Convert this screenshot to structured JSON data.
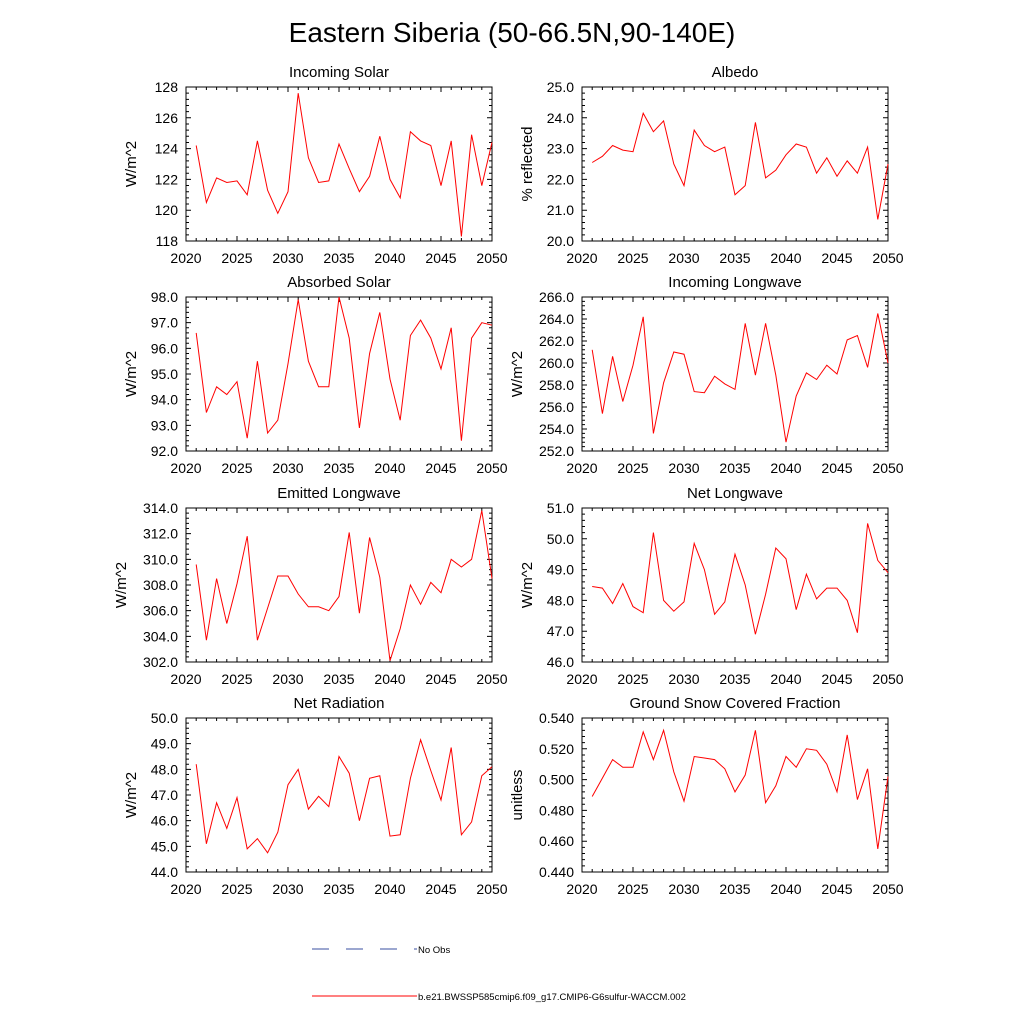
{
  "title": "Eastern Siberia (50-66.5N,90-140E)",
  "legend": {
    "entries": [
      {
        "label": "No Obs",
        "color": "#3a4fa0",
        "style": "dashed"
      },
      {
        "label": "b.e21.BWSSP585cmip6.f09_g17.CMIP6-G6sulfur-WACCM.002",
        "color": "#ff0000",
        "style": "solid"
      }
    ]
  },
  "chart_data": [
    {
      "type": "line",
      "title": "Incoming Solar",
      "ylabel": "W/m^2",
      "xlim": [
        2020,
        2050
      ],
      "ylim": [
        118,
        128
      ],
      "xticks": [
        "2020",
        "2025",
        "2030",
        "2035",
        "2040",
        "2045",
        "2050"
      ],
      "yticks": [
        "118",
        "120",
        "122",
        "124",
        "126",
        "128"
      ],
      "series": [
        {
          "color": "#ff0000",
          "x": [
            2021,
            2022,
            2023,
            2024,
            2025,
            2026,
            2027,
            2028,
            2029,
            2030,
            2031,
            2032,
            2033,
            2034,
            2035,
            2036,
            2037,
            2038,
            2039,
            2040,
            2041,
            2042,
            2043,
            2044,
            2045,
            2046,
            2047,
            2048,
            2049,
            2050
          ],
          "y": [
            124.2,
            120.5,
            122.1,
            121.8,
            121.9,
            121.0,
            124.5,
            121.3,
            119.8,
            121.2,
            127.6,
            123.4,
            121.8,
            121.9,
            124.3,
            122.7,
            121.2,
            122.2,
            124.8,
            122.0,
            120.8,
            125.1,
            124.5,
            124.2,
            121.6,
            124.5,
            118.3,
            124.9,
            121.6,
            124.4
          ]
        }
      ]
    },
    {
      "type": "line",
      "title": "Albedo",
      "ylabel": "% reflected",
      "xlim": [
        2020,
        2050
      ],
      "ylim": [
        20,
        25
      ],
      "xticks": [
        "2020",
        "2025",
        "2030",
        "2035",
        "2040",
        "2045",
        "2050"
      ],
      "yticks": [
        "20.0",
        "21.0",
        "22.0",
        "23.0",
        "24.0",
        "25.0"
      ],
      "series": [
        {
          "color": "#ff0000",
          "x": [
            2021,
            2022,
            2023,
            2024,
            2025,
            2026,
            2027,
            2028,
            2029,
            2030,
            2031,
            2032,
            2033,
            2034,
            2035,
            2036,
            2037,
            2038,
            2039,
            2040,
            2041,
            2042,
            2043,
            2044,
            2045,
            2046,
            2047,
            2048,
            2049,
            2050
          ],
          "y": [
            22.55,
            22.75,
            23.1,
            22.95,
            22.9,
            24.15,
            23.55,
            23.9,
            22.5,
            21.8,
            23.6,
            23.1,
            22.9,
            23.05,
            21.5,
            21.8,
            23.85,
            22.05,
            22.3,
            22.8,
            23.15,
            23.05,
            22.2,
            22.7,
            22.1,
            22.6,
            22.2,
            23.05,
            20.7,
            22.5
          ]
        }
      ]
    },
    {
      "type": "line",
      "title": "Absorbed Solar",
      "ylabel": "W/m^2",
      "xlim": [
        2020,
        2050
      ],
      "ylim": [
        92,
        98
      ],
      "xticks": [
        "2020",
        "2025",
        "2030",
        "2035",
        "2040",
        "2045",
        "2050"
      ],
      "yticks": [
        "92.0",
        "93.0",
        "94.0",
        "95.0",
        "96.0",
        "97.0",
        "98.0"
      ],
      "series": [
        {
          "color": "#ff0000",
          "x": [
            2021,
            2022,
            2023,
            2024,
            2025,
            2026,
            2027,
            2028,
            2029,
            2030,
            2031,
            2032,
            2033,
            2034,
            2035,
            2036,
            2037,
            2038,
            2039,
            2040,
            2041,
            2042,
            2043,
            2044,
            2045,
            2046,
            2047,
            2048,
            2049,
            2050
          ],
          "y": [
            96.6,
            93.5,
            94.5,
            94.2,
            94.7,
            92.5,
            95.5,
            92.7,
            93.2,
            95.4,
            97.9,
            95.5,
            94.5,
            94.5,
            98.0,
            96.4,
            92.9,
            95.8,
            97.4,
            94.8,
            93.2,
            96.5,
            97.1,
            96.4,
            95.2,
            96.8,
            92.4,
            96.4,
            97.0,
            96.9
          ]
        }
      ]
    },
    {
      "type": "line",
      "title": "Incoming Longwave",
      "ylabel": "W/m^2",
      "xlim": [
        2020,
        2050
      ],
      "ylim": [
        252,
        266
      ],
      "xticks": [
        "2020",
        "2025",
        "2030",
        "2035",
        "2040",
        "2045",
        "2050"
      ],
      "yticks": [
        "252.0",
        "254.0",
        "256.0",
        "258.0",
        "260.0",
        "262.0",
        "264.0",
        "266.0"
      ],
      "series": [
        {
          "color": "#ff0000",
          "x": [
            2021,
            2022,
            2023,
            2024,
            2025,
            2026,
            2027,
            2028,
            2029,
            2030,
            2031,
            2032,
            2033,
            2034,
            2035,
            2036,
            2037,
            2038,
            2039,
            2040,
            2041,
            2042,
            2043,
            2044,
            2045,
            2046,
            2047,
            2048,
            2049,
            2050
          ],
          "y": [
            261.2,
            255.4,
            260.6,
            256.5,
            259.8,
            264.2,
            253.6,
            258.2,
            261.0,
            260.8,
            257.4,
            257.3,
            258.8,
            258.1,
            257.6,
            263.6,
            258.9,
            263.6,
            258.9,
            252.8,
            257.0,
            259.1,
            258.5,
            259.8,
            259.0,
            262.1,
            262.5,
            259.6,
            264.5,
            260.0
          ]
        }
      ]
    },
    {
      "type": "line",
      "title": "Emitted Longwave",
      "ylabel": "W/m^2",
      "xlim": [
        2020,
        2050
      ],
      "ylim": [
        302,
        314
      ],
      "xticks": [
        "2020",
        "2025",
        "2030",
        "2035",
        "2040",
        "2045",
        "2050"
      ],
      "yticks": [
        "302.0",
        "304.0",
        "306.0",
        "308.0",
        "310.0",
        "312.0",
        "314.0"
      ],
      "series": [
        {
          "color": "#ff0000",
          "x": [
            2021,
            2022,
            2023,
            2024,
            2025,
            2026,
            2027,
            2028,
            2029,
            2030,
            2031,
            2032,
            2033,
            2034,
            2035,
            2036,
            2037,
            2038,
            2039,
            2040,
            2041,
            2042,
            2043,
            2044,
            2045,
            2046,
            2047,
            2048,
            2049,
            2050
          ],
          "y": [
            309.6,
            303.7,
            308.5,
            305.0,
            308.1,
            311.8,
            303.7,
            306.2,
            308.7,
            308.7,
            307.3,
            306.3,
            306.3,
            306.0,
            307.1,
            312.1,
            305.8,
            311.7,
            308.6,
            302.1,
            304.6,
            308.0,
            306.5,
            308.2,
            307.4,
            310.0,
            309.4,
            310.0,
            313.8,
            308.5
          ]
        }
      ]
    },
    {
      "type": "line",
      "title": "Net Longwave",
      "ylabel": "W/m^2",
      "xlim": [
        2020,
        2050
      ],
      "ylim": [
        46,
        51
      ],
      "xticks": [
        "2020",
        "2025",
        "2030",
        "2035",
        "2040",
        "2045",
        "2050"
      ],
      "yticks": [
        "46.0",
        "47.0",
        "48.0",
        "49.0",
        "50.0",
        "51.0"
      ],
      "series": [
        {
          "color": "#ff0000",
          "x": [
            2021,
            2022,
            2023,
            2024,
            2025,
            2026,
            2027,
            2028,
            2029,
            2030,
            2031,
            2032,
            2033,
            2034,
            2035,
            2036,
            2037,
            2038,
            2039,
            2040,
            2041,
            2042,
            2043,
            2044,
            2045,
            2046,
            2047,
            2048,
            2049,
            2050
          ],
          "y": [
            48.45,
            48.4,
            47.9,
            48.55,
            47.8,
            47.6,
            50.2,
            48.0,
            47.65,
            47.95,
            49.85,
            49.0,
            47.55,
            47.95,
            49.5,
            48.5,
            46.9,
            48.2,
            49.7,
            49.35,
            47.7,
            48.85,
            48.05,
            48.4,
            48.4,
            48.0,
            46.95,
            50.5,
            49.3,
            48.9
          ]
        }
      ]
    },
    {
      "type": "line",
      "title": "Net Radiation",
      "ylabel": "W/m^2",
      "xlim": [
        2020,
        2050
      ],
      "ylim": [
        44,
        50
      ],
      "xticks": [
        "2020",
        "2025",
        "2030",
        "2035",
        "2040",
        "2045",
        "2050"
      ],
      "yticks": [
        "44.0",
        "45.0",
        "46.0",
        "47.0",
        "48.0",
        "49.0",
        "50.0"
      ],
      "series": [
        {
          "color": "#ff0000",
          "x": [
            2021,
            2022,
            2023,
            2024,
            2025,
            2026,
            2027,
            2028,
            2029,
            2030,
            2031,
            2032,
            2033,
            2034,
            2035,
            2036,
            2037,
            2038,
            2039,
            2040,
            2041,
            2042,
            2043,
            2044,
            2045,
            2046,
            2047,
            2048,
            2049,
            2050
          ],
          "y": [
            48.2,
            45.1,
            46.7,
            45.7,
            46.9,
            44.9,
            45.3,
            44.75,
            45.55,
            47.4,
            48.0,
            46.45,
            46.95,
            46.55,
            48.5,
            47.85,
            46.0,
            47.65,
            47.75,
            45.4,
            45.45,
            47.65,
            49.15,
            47.95,
            46.8,
            48.85,
            45.45,
            45.95,
            47.75,
            48.1
          ]
        }
      ]
    },
    {
      "type": "line",
      "title": "Ground Snow Covered Fraction",
      "ylabel": "unitless",
      "xlim": [
        2020,
        2050
      ],
      "ylim": [
        0.44,
        0.54
      ],
      "xticks": [
        "2020",
        "2025",
        "2030",
        "2035",
        "2040",
        "2045",
        "2050"
      ],
      "yticks": [
        "0.440",
        "0.460",
        "0.480",
        "0.500",
        "0.520",
        "0.540"
      ],
      "series": [
        {
          "color": "#ff0000",
          "x": [
            2021,
            2022,
            2023,
            2024,
            2025,
            2026,
            2027,
            2028,
            2029,
            2030,
            2031,
            2032,
            2033,
            2034,
            2035,
            2036,
            2037,
            2038,
            2039,
            2040,
            2041,
            2042,
            2043,
            2044,
            2045,
            2046,
            2047,
            2048,
            2049,
            2050
          ],
          "y": [
            0.489,
            0.501,
            0.513,
            0.508,
            0.508,
            0.531,
            0.513,
            0.532,
            0.505,
            0.486,
            0.515,
            0.514,
            0.513,
            0.507,
            0.492,
            0.503,
            0.532,
            0.485,
            0.496,
            0.515,
            0.508,
            0.52,
            0.519,
            0.51,
            0.492,
            0.529,
            0.487,
            0.507,
            0.455,
            0.502
          ]
        }
      ]
    }
  ]
}
